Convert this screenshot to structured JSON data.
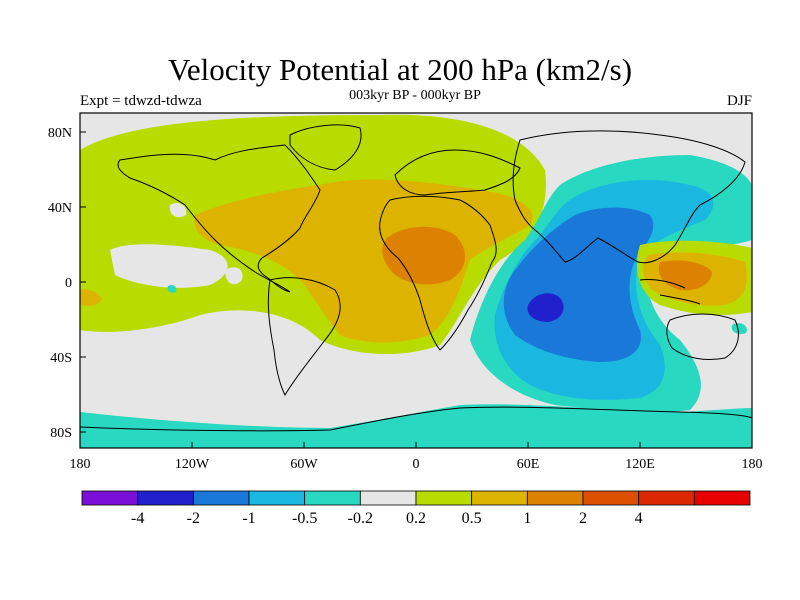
{
  "figure": {
    "title": "Velocity Potential at 200 hPa (km2/s)",
    "left_subtitle": "Expt = tdwzd-tdwza",
    "center_subtitle": "003kyr BP - 000kyr BP",
    "right_subtitle": "DJF"
  },
  "axes": {
    "lat_labels": [
      "80N",
      "40N",
      "0",
      "40S",
      "80S"
    ],
    "lon_labels": [
      "180",
      "120W",
      "60W",
      "0",
      "60E",
      "120E",
      "180"
    ]
  },
  "colorbar": {
    "colors": [
      "#7a10d8",
      "#2020cc",
      "#1a78d8",
      "#1ab8e0",
      "#28d8c0",
      "#e6e6e6",
      "#b8dc00",
      "#dcb400",
      "#dc8200",
      "#dc5000",
      "#dc2800",
      "#e60000"
    ],
    "labels": [
      "-4",
      "-2",
      "-1",
      "-0.5",
      "-0.2",
      "0.2",
      "0.5",
      "1",
      "2",
      "4"
    ]
  },
  "field_colors": {
    "background": "#e6e6e6",
    "pos_weak": "#b8dc00",
    "pos_mid": "#dcb400",
    "pos_strong": "#dc8200",
    "neg_weak": "#28d8c0",
    "neg_mid": "#1ab8e0",
    "neg_strong": "#1a78d8",
    "neg_core": "#2020cc"
  }
}
